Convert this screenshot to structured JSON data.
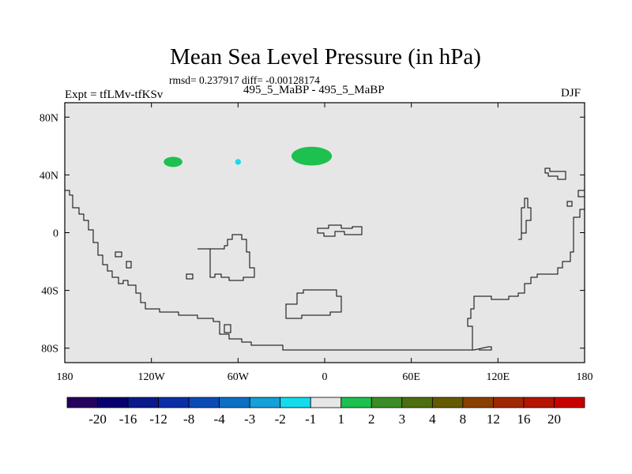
{
  "chart_data": {
    "type": "heatmap",
    "title": "Mean Sea Level Pressure (in hPa)",
    "stats_line": "rmsd= 0.237917 diff= -0.00128174",
    "left_label": "Expt = tfLMv-tfKSv",
    "center_label": "495_5_MaBP - 495_5_MaBP",
    "right_label": "DJF",
    "xlim": [
      -180,
      180
    ],
    "ylim": [
      -90,
      90
    ],
    "x_ticks": [
      {
        "value": -180,
        "label": "180"
      },
      {
        "value": -120,
        "label": "120W"
      },
      {
        "value": -60,
        "label": "60W"
      },
      {
        "value": 0,
        "label": "0"
      },
      {
        "value": 60,
        "label": "60E"
      },
      {
        "value": 120,
        "label": "120E"
      },
      {
        "value": 180,
        "label": "180"
      }
    ],
    "y_ticks": [
      {
        "value": 80,
        "label": "80N"
      },
      {
        "value": 40,
        "label": "40N"
      },
      {
        "value": 0,
        "label": "0"
      },
      {
        "value": -40,
        "label": "40S"
      },
      {
        "value": -80,
        "label": "80S"
      }
    ],
    "background_color": "#e6e6e6",
    "colorbar": {
      "levels": [
        "-20",
        "-16",
        "-12",
        "-8",
        "-4",
        "-3",
        "-2",
        "-1",
        "1",
        "2",
        "3",
        "4",
        "8",
        "12",
        "16",
        "20"
      ],
      "colors": [
        "#25005e",
        "#08006e",
        "#0a1a8a",
        "#0a2ea6",
        "#0a4ab6",
        "#0a70c4",
        "#14a0d8",
        "#14dcec",
        "#e6e6e6",
        "#1ec050",
        "#3c8c28",
        "#4e6e12",
        "#645a00",
        "#8a4000",
        "#a02800",
        "#b41400",
        "#c80000"
      ]
    },
    "anomalies": [
      {
        "name": "north-atlantic-positive",
        "lon": -9,
        "lat": 53,
        "dlon": 14,
        "dlat": 6.5,
        "value_bin": "1 to 2",
        "color": "#1ec050"
      },
      {
        "name": "north-america-positive",
        "lon": -105,
        "lat": 49,
        "dlon": 6.5,
        "dlat": 3.5,
        "value_bin": "1 to 2",
        "color": "#1ec050"
      },
      {
        "name": "west-atlantic-negative",
        "lon": -60,
        "lat": 49,
        "dlon": 2,
        "dlat": 2,
        "value_bin": "-2 to -1",
        "color": "#14dcec"
      }
    ]
  }
}
